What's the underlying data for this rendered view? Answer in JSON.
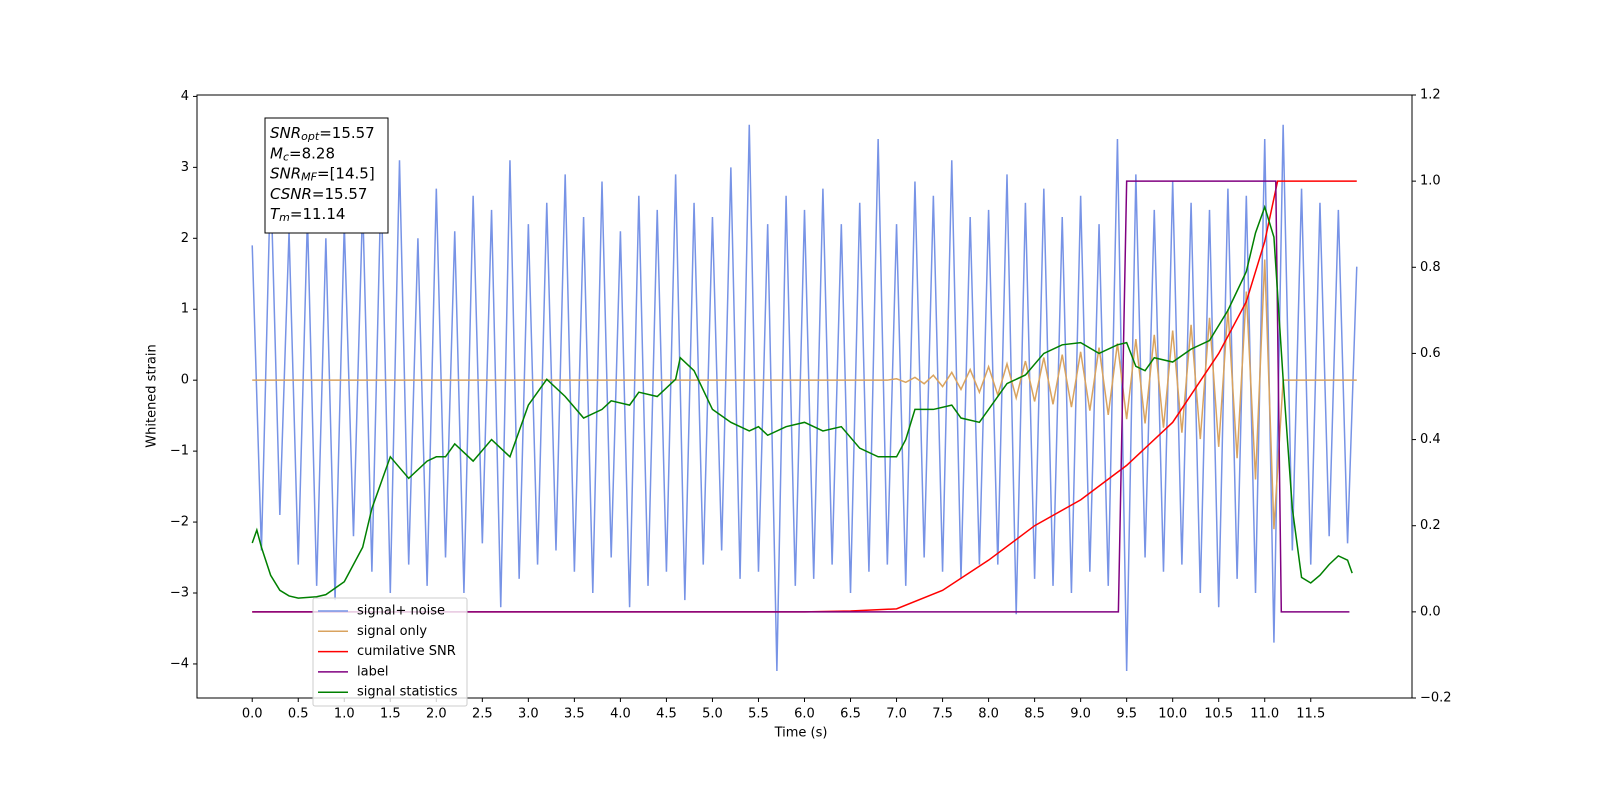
{
  "chart_data": {
    "type": "line",
    "xlabel": "Time (s)",
    "ylabel": "Whitened strain",
    "xlim": [
      -0.6,
      12.6
    ],
    "ylim": [
      -4.48,
      4.02
    ],
    "y2lim": [
      -0.2,
      1.2
    ],
    "xticks": [
      {
        "value": 0,
        "label": "0.0"
      },
      0.5,
      {
        "value": 1,
        "label": "1.0"
      },
      1.5,
      {
        "value": 2,
        "label": "2.0"
      },
      2.5,
      {
        "value": 3,
        "label": "3.0"
      },
      3.5,
      {
        "value": 4,
        "label": "4.0"
      },
      4.5,
      {
        "value": 5,
        "label": "5.0"
      },
      5.5,
      {
        "value": 6,
        "label": "6.0"
      },
      6.5,
      {
        "value": 7,
        "label": "7.0"
      },
      7.5,
      {
        "value": 8,
        "label": "8.0"
      },
      8.5,
      {
        "value": 9,
        "label": "9.0"
      },
      9.5,
      {
        "value": 10,
        "label": "10.0"
      },
      10.5,
      {
        "value": 11,
        "label": "11.0"
      },
      11.5
    ],
    "yticks": [
      {
        "value": -4,
        "label": "−4"
      },
      {
        "value": -3,
        "label": "−3"
      },
      {
        "value": -2,
        "label": "−2"
      },
      {
        "value": -1,
        "label": "−1"
      },
      0,
      1,
      2,
      3,
      4
    ],
    "y2ticks": [
      {
        "value": -0.2,
        "label": "−0.2"
      },
      {
        "value": 0,
        "label": "0.0"
      },
      0.2,
      0.4,
      0.6,
      0.8,
      {
        "value": 1,
        "label": "1.0"
      },
      1.2
    ],
    "legend_loc": "lower left",
    "annotation": [
      {
        "symbol": "SNR",
        "sub": "opt",
        "text": "=15.57"
      },
      {
        "symbol": "M",
        "sub": "c",
        "text": "=8.28"
      },
      {
        "symbol": "SNR",
        "sub": "MF",
        "text": "=[14.5]"
      },
      {
        "symbol": "CSNR",
        "text": "=15.57"
      },
      {
        "symbol": "T",
        "sub": "m",
        "text": "=11.14"
      }
    ],
    "x": [
      0.0,
      0.1,
      0.2,
      0.3,
      0.4,
      0.5,
      0.6,
      0.7,
      0.8,
      0.9,
      1.0,
      1.1,
      1.2,
      1.3,
      1.4,
      1.5,
      1.6,
      1.7,
      1.8,
      1.9,
      2.0,
      2.1,
      2.2,
      2.3,
      2.4,
      2.5,
      2.6,
      2.7,
      2.8,
      2.9,
      3.0,
      3.1,
      3.2,
      3.3,
      3.4,
      3.5,
      3.6,
      3.7,
      3.8,
      3.9,
      4.0,
      4.1,
      4.2,
      4.3,
      4.4,
      4.5,
      4.6,
      4.7,
      4.8,
      4.9,
      5.0,
      5.1,
      5.2,
      5.3,
      5.4,
      5.5,
      5.6,
      5.7,
      5.8,
      5.9,
      6.0,
      6.1,
      6.2,
      6.3,
      6.4,
      6.5,
      6.6,
      6.7,
      6.8,
      6.9,
      7.0,
      7.1,
      7.2,
      7.3,
      7.4,
      7.5,
      7.6,
      7.7,
      7.8,
      7.9,
      8.0,
      8.1,
      8.2,
      8.3,
      8.4,
      8.5,
      8.6,
      8.7,
      8.8,
      8.9,
      9.0,
      9.1,
      9.2,
      9.3,
      9.4,
      9.5,
      9.6,
      9.7,
      9.8,
      9.9,
      10.0,
      10.1,
      10.2,
      10.3,
      10.4,
      10.5,
      10.6,
      10.7,
      10.8,
      10.9,
      11.0,
      11.1,
      11.2,
      11.3,
      11.4,
      11.5,
      11.6,
      11.7,
      11.8,
      11.9,
      12.0
    ],
    "series": [
      {
        "name": "signal+ noise",
        "color": "#7793e6",
        "values": [
          1.9,
          -2.4,
          2.9,
          -1.9,
          2.1,
          -2.6,
          2.3,
          -2.9,
          2.0,
          -3.1,
          2.2,
          -2.2,
          2.5,
          -2.7,
          2.8,
          -3.0,
          3.1,
          -2.6,
          2.0,
          -2.9,
          2.7,
          -2.5,
          2.1,
          -3.0,
          2.6,
          -2.3,
          2.4,
          -3.2,
          3.1,
          -2.8,
          2.2,
          -2.6,
          2.5,
          -2.4,
          2.9,
          -2.7,
          2.3,
          -3.0,
          2.8,
          -2.5,
          2.1,
          -3.2,
          2.6,
          -2.9,
          2.4,
          -2.7,
          2.9,
          -3.1,
          2.5,
          -2.6,
          2.3,
          -2.4,
          3.0,
          -2.8,
          3.6,
          -2.7,
          2.2,
          -4.1,
          2.6,
          -2.9,
          2.4,
          -2.8,
          2.7,
          -2.6,
          2.2,
          -3.0,
          2.5,
          -2.7,
          3.4,
          -2.6,
          2.2,
          -2.9,
          2.8,
          -2.5,
          2.6,
          -2.7,
          3.1,
          -2.8,
          2.3,
          -2.6,
          2.4,
          -2.6,
          2.9,
          -3.3,
          2.5,
          -2.8,
          2.7,
          -2.9,
          2.3,
          -3.0,
          2.6,
          -2.7,
          2.2,
          -2.9,
          3.4,
          -4.1,
          2.9,
          -2.5,
          2.4,
          -2.7,
          2.8,
          -2.6,
          2.5,
          -3.0,
          2.4,
          -3.2,
          2.7,
          -2.8,
          2.6,
          -3.0,
          3.4,
          -3.7,
          3.6,
          -2.4,
          2.7,
          -2.6,
          2.5,
          -2.2,
          2.4,
          -2.3,
          1.6
        ]
      },
      {
        "name": "signal only",
        "color": "#d9a35f",
        "values": [
          0,
          0,
          0,
          0,
          0,
          0,
          0,
          0,
          0,
          0,
          0,
          0,
          0,
          0,
          0,
          0,
          0,
          0,
          0,
          0,
          0,
          0,
          0,
          0,
          0,
          0,
          0,
          0,
          0,
          0,
          0,
          0,
          0,
          0,
          0,
          0,
          0,
          0,
          0,
          0,
          0,
          0,
          0,
          0,
          0,
          0,
          0,
          0,
          0,
          0,
          0,
          0,
          0,
          0,
          0,
          0,
          0,
          0,
          0,
          0,
          0,
          0,
          0,
          0,
          0,
          0,
          0,
          0,
          0,
          0,
          0.02,
          -0.03,
          0.04,
          -0.05,
          0.07,
          -0.09,
          0.11,
          -0.13,
          0.15,
          -0.17,
          0.19,
          -0.21,
          0.23,
          -0.25,
          0.27,
          -0.3,
          0.32,
          -0.34,
          0.36,
          -0.38,
          0.4,
          -0.43,
          0.46,
          -0.49,
          0.52,
          -0.55,
          0.58,
          -0.61,
          0.64,
          -0.67,
          0.7,
          -0.74,
          0.78,
          -0.83,
          0.88,
          -0.94,
          1.0,
          -1.1,
          1.25,
          -1.4,
          1.7,
          -2.1,
          0,
          0,
          0,
          0,
          0,
          0,
          0,
          0,
          0
        ]
      },
      {
        "name": "cumilative SNR",
        "color": "#ff0000",
        "axis": "y2",
        "x": [
          0,
          6.0,
          6.5,
          7.0,
          7.5,
          8.0,
          8.5,
          9.0,
          9.5,
          10.0,
          10.5,
          10.8,
          11.0,
          11.14,
          12.0
        ],
        "values": [
          0,
          0,
          0.002,
          0.007,
          0.05,
          0.12,
          0.2,
          0.26,
          0.34,
          0.44,
          0.6,
          0.72,
          0.86,
          1.0,
          1.0
        ]
      },
      {
        "name": "label",
        "color": "#800080",
        "axis": "y2",
        "x": [
          0,
          9.41,
          9.5,
          11.12,
          11.18,
          11.92
        ],
        "values": [
          0,
          0,
          1,
          1,
          0,
          0
        ]
      },
      {
        "name": "signal statistics",
        "color": "#008000",
        "axis": "y2",
        "x": [
          0.0,
          0.05,
          0.1,
          0.2,
          0.3,
          0.4,
          0.5,
          0.7,
          0.8,
          1.0,
          1.2,
          1.3,
          1.5,
          1.7,
          1.9,
          2.0,
          2.1,
          2.2,
          2.4,
          2.6,
          2.8,
          2.9,
          3.0,
          3.1,
          3.2,
          3.4,
          3.6,
          3.8,
          3.9,
          4.1,
          4.2,
          4.4,
          4.6,
          4.65,
          4.8,
          5.0,
          5.2,
          5.4,
          5.5,
          5.6,
          5.8,
          6.0,
          6.2,
          6.4,
          6.6,
          6.8,
          7.0,
          7.1,
          7.2,
          7.4,
          7.6,
          7.7,
          7.9,
          8.0,
          8.2,
          8.4,
          8.6,
          8.8,
          9.0,
          9.2,
          9.4,
          9.5,
          9.6,
          9.7,
          9.8,
          10.0,
          10.2,
          10.4,
          10.6,
          10.8,
          10.9,
          11.0,
          11.1,
          11.2,
          11.3,
          11.4,
          11.5,
          11.6,
          11.7,
          11.8,
          11.9,
          11.95
        ],
        "values": [
          0.16,
          0.19,
          0.15,
          0.085,
          0.05,
          0.037,
          0.032,
          0.035,
          0.04,
          0.07,
          0.15,
          0.24,
          0.36,
          0.31,
          0.35,
          0.36,
          0.36,
          0.39,
          0.35,
          0.4,
          0.36,
          0.42,
          0.48,
          0.51,
          0.54,
          0.5,
          0.45,
          0.47,
          0.49,
          0.48,
          0.51,
          0.5,
          0.54,
          0.59,
          0.56,
          0.47,
          0.44,
          0.42,
          0.43,
          0.41,
          0.43,
          0.44,
          0.42,
          0.43,
          0.38,
          0.36,
          0.36,
          0.4,
          0.47,
          0.47,
          0.48,
          0.45,
          0.44,
          0.47,
          0.53,
          0.55,
          0.6,
          0.62,
          0.625,
          0.6,
          0.62,
          0.625,
          0.57,
          0.56,
          0.59,
          0.58,
          0.61,
          0.63,
          0.7,
          0.79,
          0.88,
          0.94,
          0.87,
          0.54,
          0.24,
          0.08,
          0.067,
          0.085,
          0.11,
          0.13,
          0.12,
          0.09
        ]
      }
    ]
  }
}
